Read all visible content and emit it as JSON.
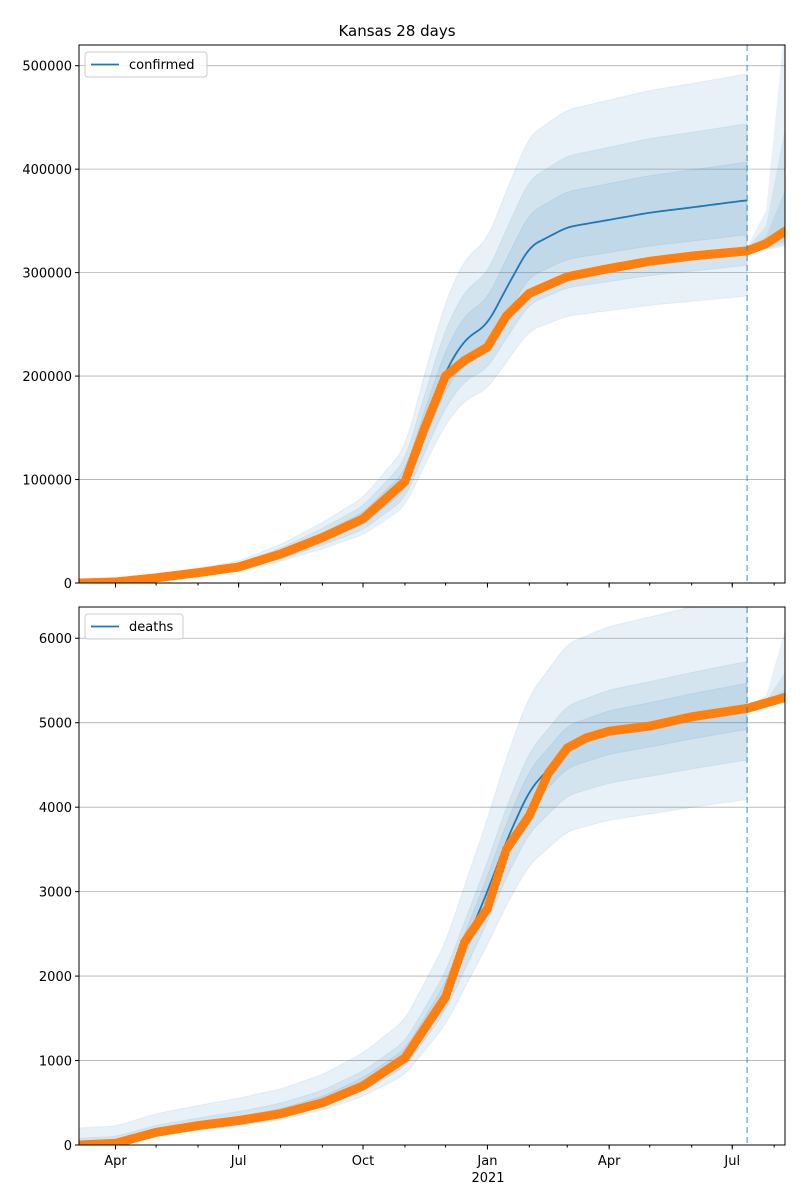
{
  "chart_data": {
    "type": "line",
    "title": "Kansas 28 days",
    "x_range": [
      "2020-03-05",
      "2021-08-09"
    ],
    "x_ticks": [
      {
        "date": "2020-04-01",
        "label": "Apr"
      },
      {
        "date": "2020-07-01",
        "label": "Jul"
      },
      {
        "date": "2020-10-01",
        "label": "Oct"
      },
      {
        "date": "2021-01-01",
        "label": "Jan"
      },
      {
        "date": "2021-04-01",
        "label": "Apr"
      },
      {
        "date": "2021-07-01",
        "label": "Jul"
      }
    ],
    "x_year_label": "2021",
    "forecast_start": "2021-07-12",
    "colors": {
      "model": "#1f77b4",
      "observed": "#ff7f0e",
      "grid": "#b0b0b0"
    },
    "panels": [
      {
        "legend": "confirmed",
        "legend_placement": "top-left",
        "ylim": [
          0,
          520000
        ],
        "y_ticks": [
          0,
          100000,
          200000,
          300000,
          400000,
          500000
        ],
        "y_tick_labels": [
          "0",
          "100000",
          "200000",
          "300000",
          "400000",
          "500000"
        ],
        "band_ratios": [
          0.75,
          0.83,
          0.91,
          1.1,
          1.2,
          1.33
        ],
        "model": [
          [
            "2020-03-05",
            0
          ],
          [
            "2020-04-01",
            1200
          ],
          [
            "2020-05-01",
            5500
          ],
          [
            "2020-06-01",
            10500
          ],
          [
            "2020-07-01",
            16000
          ],
          [
            "2020-08-01",
            28000
          ],
          [
            "2020-09-01",
            44000
          ],
          [
            "2020-10-01",
            62000
          ],
          [
            "2020-11-01",
            98000
          ],
          [
            "2020-11-15",
            150000
          ],
          [
            "2020-12-01",
            205000
          ],
          [
            "2020-12-15",
            235000
          ],
          [
            "2021-01-01",
            250000
          ],
          [
            "2021-01-15",
            285000
          ],
          [
            "2021-02-01",
            325000
          ],
          [
            "2021-03-01",
            344000
          ],
          [
            "2021-04-01",
            351000
          ],
          [
            "2021-05-01",
            358000
          ],
          [
            "2021-06-01",
            363000
          ],
          [
            "2021-07-12",
            370000
          ]
        ],
        "observed": [
          [
            "2020-03-05",
            0
          ],
          [
            "2020-04-01",
            1000
          ],
          [
            "2020-05-01",
            5000
          ],
          [
            "2020-06-01",
            10000
          ],
          [
            "2020-07-01",
            15500
          ],
          [
            "2020-08-01",
            28000
          ],
          [
            "2020-09-01",
            44000
          ],
          [
            "2020-10-01",
            62000
          ],
          [
            "2020-11-01",
            98000
          ],
          [
            "2020-11-15",
            148000
          ],
          [
            "2020-12-01",
            200000
          ],
          [
            "2020-12-15",
            215000
          ],
          [
            "2021-01-01",
            228000
          ],
          [
            "2021-01-15",
            258000
          ],
          [
            "2021-02-01",
            280000
          ],
          [
            "2021-03-01",
            296000
          ],
          [
            "2021-04-01",
            304000
          ],
          [
            "2021-05-01",
            311000
          ],
          [
            "2021-06-01",
            316000
          ],
          [
            "2021-07-12",
            321000
          ],
          [
            "2021-07-26",
            328000
          ],
          [
            "2021-08-09",
            340000
          ]
        ],
        "forecast": {
          "dates": [
            "2021-07-12",
            "2021-07-26",
            "2021-08-09"
          ],
          "lower3": [
            320000,
            322000,
            325000
          ],
          "lower2": [
            320000,
            323000,
            327000
          ],
          "lower1": [
            321000,
            325000,
            330000
          ],
          "upper1": [
            323000,
            335000,
            380000
          ],
          "upper2": [
            324000,
            345000,
            440000
          ],
          "upper3": [
            325000,
            360000,
            540000
          ]
        }
      },
      {
        "legend": "deaths",
        "legend_placement": "top-left",
        "ylim": [
          0,
          6370
        ],
        "y_ticks": [
          0,
          1000,
          2000,
          3000,
          4000,
          5000,
          6000
        ],
        "y_tick_labels": [
          "0",
          "1000",
          "2000",
          "3000",
          "4000",
          "5000",
          "6000"
        ],
        "band_ratios": [
          0.79,
          0.88,
          0.95,
          1.05,
          1.09,
          1.22
        ],
        "band_offsets": [
          0,
          0,
          0,
          30,
          80,
          200
        ],
        "model": [
          [
            "2020-03-05",
            0
          ],
          [
            "2020-04-01",
            20
          ],
          [
            "2020-05-01",
            140
          ],
          [
            "2020-06-01",
            220
          ],
          [
            "2020-07-01",
            290
          ],
          [
            "2020-08-01",
            380
          ],
          [
            "2020-09-01",
            520
          ],
          [
            "2020-10-01",
            730
          ],
          [
            "2020-11-01",
            1050
          ],
          [
            "2020-12-01",
            1800
          ],
          [
            "2020-12-15",
            2350
          ],
          [
            "2021-01-01",
            3000
          ],
          [
            "2021-01-15",
            3600
          ],
          [
            "2021-02-01",
            4200
          ],
          [
            "2021-03-01",
            4700
          ],
          [
            "2021-04-01",
            4870
          ],
          [
            "2021-05-01",
            4960
          ],
          [
            "2021-06-01",
            5060
          ],
          [
            "2021-07-12",
            5180
          ]
        ],
        "observed": [
          [
            "2020-03-05",
            0
          ],
          [
            "2020-04-01",
            20
          ],
          [
            "2020-05-01",
            150
          ],
          [
            "2020-06-01",
            230
          ],
          [
            "2020-07-01",
            290
          ],
          [
            "2020-08-01",
            370
          ],
          [
            "2020-09-01",
            500
          ],
          [
            "2020-10-01",
            700
          ],
          [
            "2020-11-01",
            1030
          ],
          [
            "2020-12-01",
            1750
          ],
          [
            "2020-12-15",
            2400
          ],
          [
            "2021-01-01",
            2800
          ],
          [
            "2021-01-15",
            3500
          ],
          [
            "2021-02-01",
            3900
          ],
          [
            "2021-02-15",
            4400
          ],
          [
            "2021-03-01",
            4700
          ],
          [
            "2021-03-15",
            4820
          ],
          [
            "2021-04-01",
            4900
          ],
          [
            "2021-05-01",
            4960
          ],
          [
            "2021-06-01",
            5070
          ],
          [
            "2021-07-12",
            5170
          ],
          [
            "2021-08-09",
            5300
          ]
        ],
        "forecast": {
          "dates": [
            "2021-07-12",
            "2021-07-26",
            "2021-08-09"
          ],
          "lower3": [
            5170,
            5190,
            5230
          ],
          "lower2": [
            5170,
            5195,
            5240
          ],
          "lower1": [
            5175,
            5200,
            5250
          ],
          "upper1": [
            5180,
            5230,
            5400
          ],
          "upper2": [
            5185,
            5260,
            5600
          ],
          "upper3": [
            5190,
            5320,
            6100
          ]
        }
      }
    ]
  }
}
